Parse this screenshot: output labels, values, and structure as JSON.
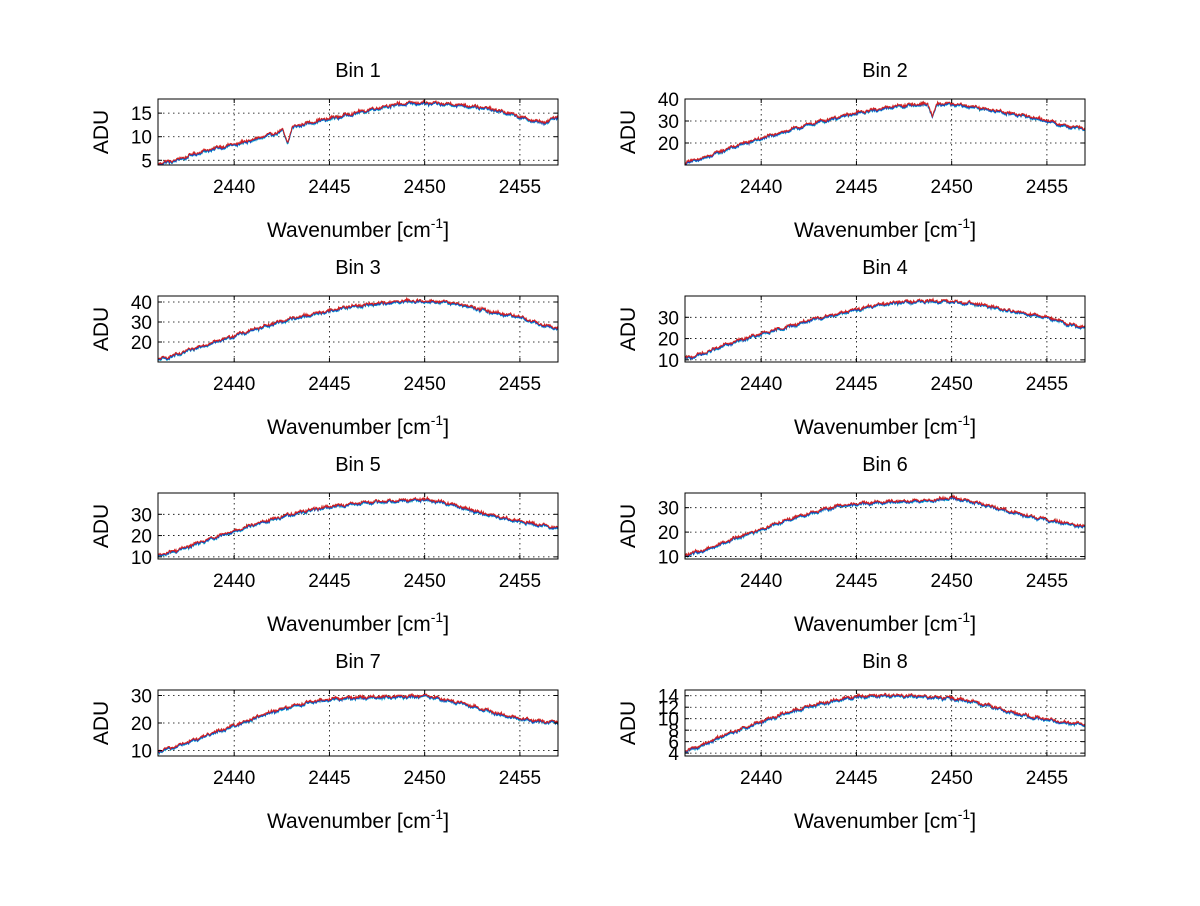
{
  "chart_data": [
    {
      "type": "line",
      "title": "Bin 1",
      "xlabel": "Wavenumber [cm",
      "xlabel_sup": "-1",
      "xlabel_tail": "]",
      "ylabel": "ADU",
      "xlim": [
        2436,
        2457
      ],
      "ylim": [
        4,
        18
      ],
      "xticks": [
        2440,
        2445,
        2450,
        2455
      ],
      "yticks": [
        5,
        10,
        15
      ],
      "grid": true,
      "series_colors": [
        "#00b4d8",
        "#2e8b2e",
        "#1f3fbf",
        "#d62020"
      ],
      "curve": {
        "x": [
          2436,
          2437,
          2438,
          2439,
          2440,
          2441,
          2442,
          2442.8,
          2443.5,
          2444.5,
          2445.5,
          2446.5,
          2447.5,
          2448.5,
          2449.5,
          2450.5,
          2451.5,
          2452.5,
          2453.5,
          2454.5,
          2455.5,
          2456.3,
          2457
        ],
        "y": [
          4.2,
          5.0,
          6.4,
          7.5,
          8.3,
          9.3,
          10.5,
          11.6,
          12.5,
          13.4,
          14.2,
          15.1,
          16.0,
          16.8,
          17.1,
          17.0,
          16.8,
          16.4,
          15.8,
          14.8,
          13.5,
          12.9,
          14.3
        ]
      },
      "dips": [
        {
          "x": 2442.8,
          "depth": 3.0
        }
      ]
    },
    {
      "type": "line",
      "title": "Bin 2",
      "xlabel": "Wavenumber [cm",
      "xlabel_sup": "-1",
      "xlabel_tail": "]",
      "ylabel": "ADU",
      "xlim": [
        2436,
        2457
      ],
      "ylim": [
        10,
        40
      ],
      "xticks": [
        2440,
        2445,
        2450,
        2455
      ],
      "yticks": [
        20,
        30,
        40
      ],
      "grid": true,
      "series_colors": [
        "#00b4d8",
        "#2e8b2e",
        "#1f3fbf",
        "#d62020"
      ],
      "curve": {
        "x": [
          2436,
          2437,
          2438,
          2439,
          2440,
          2441,
          2442,
          2443,
          2444,
          2445,
          2446,
          2447,
          2448,
          2449,
          2450,
          2451,
          2452,
          2453,
          2454,
          2455,
          2456,
          2457
        ],
        "y": [
          11,
          13,
          16.5,
          19.5,
          22,
          24.5,
          27,
          29.5,
          31.5,
          33.5,
          35,
          36.5,
          37.3,
          37.8,
          37.5,
          36.5,
          35,
          33.5,
          32,
          30,
          27.5,
          26.5
        ]
      },
      "dips": [
        {
          "x": 2449.0,
          "depth": 6.0
        }
      ]
    },
    {
      "type": "line",
      "title": "Bin 3",
      "xlabel": "Wavenumber [cm",
      "xlabel_sup": "-1",
      "xlabel_tail": "]",
      "ylabel": "ADU",
      "xlim": [
        2436,
        2457
      ],
      "ylim": [
        10,
        43
      ],
      "xticks": [
        2440,
        2445,
        2450,
        2455
      ],
      "yticks": [
        20,
        30,
        40
      ],
      "grid": true,
      "series_colors": [
        "#00b4d8",
        "#2e8b2e",
        "#1f3fbf",
        "#d62020"
      ],
      "curve": {
        "x": [
          2436,
          2437,
          2438,
          2439,
          2440,
          2441,
          2442,
          2443,
          2444,
          2445,
          2446,
          2447,
          2448,
          2449,
          2450,
          2451,
          2452,
          2453,
          2454,
          2455,
          2456,
          2457
        ],
        "y": [
          11,
          13.5,
          17,
          20,
          23,
          26,
          29,
          31.5,
          33.5,
          35.5,
          37.5,
          38.5,
          39.5,
          40.3,
          40.3,
          39.8,
          38.5,
          36,
          34,
          32.5,
          29,
          26.5
        ]
      },
      "dips": []
    },
    {
      "type": "line",
      "title": "Bin 4",
      "xlabel": "Wavenumber [cm",
      "xlabel_sup": "-1",
      "xlabel_tail": "]",
      "ylabel": "ADU",
      "xlim": [
        2436,
        2457
      ],
      "ylim": [
        9,
        40
      ],
      "xticks": [
        2440,
        2445,
        2450,
        2455
      ],
      "yticks": [
        10,
        20,
        30
      ],
      "grid": true,
      "series_colors": [
        "#00b4d8",
        "#2e8b2e",
        "#1f3fbf",
        "#d62020"
      ],
      "curve": {
        "x": [
          2436,
          2437,
          2438,
          2439,
          2440,
          2441,
          2442,
          2443,
          2444,
          2445,
          2446,
          2447,
          2448,
          2449,
          2450,
          2451,
          2452,
          2453,
          2454,
          2455,
          2456,
          2457
        ],
        "y": [
          10.5,
          13,
          16.5,
          19.5,
          22,
          24.5,
          27,
          29.5,
          31.5,
          33.5,
          35.5,
          36.8,
          37.3,
          37.5,
          37.2,
          36.5,
          35,
          33,
          31.5,
          30,
          27,
          25
        ]
      },
      "dips": []
    },
    {
      "type": "line",
      "title": "Bin 5",
      "xlabel": "Wavenumber [cm",
      "xlabel_sup": "-1",
      "xlabel_tail": "]",
      "ylabel": "ADU",
      "xlim": [
        2436,
        2457
      ],
      "ylim": [
        9,
        40
      ],
      "xticks": [
        2440,
        2445,
        2450,
        2455
      ],
      "yticks": [
        10,
        20,
        30
      ],
      "grid": true,
      "series_colors": [
        "#00b4d8",
        "#2e8b2e",
        "#1f3fbf",
        "#d62020"
      ],
      "curve": {
        "x": [
          2436,
          2437,
          2438,
          2439,
          2440,
          2441,
          2442,
          2443,
          2444,
          2445,
          2446,
          2447,
          2448,
          2449,
          2450,
          2451,
          2452,
          2453,
          2454,
          2455,
          2456,
          2457
        ],
        "y": [
          10.5,
          13,
          16,
          19,
          22,
          25,
          27.5,
          30,
          32,
          33.5,
          34.5,
          35.5,
          36,
          36.5,
          37,
          35.5,
          33,
          30.5,
          28.5,
          26.5,
          25,
          23.5
        ]
      },
      "dips": []
    },
    {
      "type": "line",
      "title": "Bin 6",
      "xlabel": "Wavenumber [cm",
      "xlabel_sup": "-1",
      "xlabel_tail": "]",
      "ylabel": "ADU",
      "xlim": [
        2436,
        2457
      ],
      "ylim": [
        9,
        36
      ],
      "xticks": [
        2440,
        2445,
        2450,
        2455
      ],
      "yticks": [
        10,
        20,
        30
      ],
      "grid": true,
      "series_colors": [
        "#00b4d8",
        "#2e8b2e",
        "#1f3fbf",
        "#d62020"
      ],
      "curve": {
        "x": [
          2436,
          2437,
          2438,
          2439,
          2440,
          2441,
          2442,
          2443,
          2444,
          2445,
          2446,
          2447,
          2448,
          2449,
          2450,
          2451,
          2452,
          2453,
          2454,
          2455,
          2456,
          2457
        ],
        "y": [
          10.5,
          12.5,
          15.5,
          18.5,
          21,
          24,
          26.5,
          28.5,
          30.5,
          31.5,
          32,
          32.5,
          32.5,
          33,
          34,
          32.5,
          30.5,
          28.5,
          26.5,
          25,
          23.5,
          22
        ]
      },
      "dips": []
    },
    {
      "type": "line",
      "title": "Bin 7",
      "xlabel": "Wavenumber [cm",
      "xlabel_sup": "-1",
      "xlabel_tail": "]",
      "ylabel": "ADU",
      "xlim": [
        2436,
        2457
      ],
      "ylim": [
        8,
        32
      ],
      "xticks": [
        2440,
        2445,
        2450,
        2455
      ],
      "yticks": [
        10,
        20,
        30
      ],
      "grid": true,
      "series_colors": [
        "#00b4d8",
        "#2e8b2e",
        "#1f3fbf",
        "#d62020"
      ],
      "curve": {
        "x": [
          2436,
          2437,
          2438,
          2439,
          2440,
          2441,
          2442,
          2443,
          2444,
          2445,
          2446,
          2447,
          2448,
          2449,
          2450,
          2451,
          2452,
          2453,
          2454,
          2455,
          2456,
          2457
        ],
        "y": [
          9.5,
          11.5,
          14,
          16.5,
          19,
          21.5,
          24,
          26,
          27.5,
          28.5,
          29,
          29.3,
          29.3,
          29.5,
          29.8,
          28.5,
          27,
          25,
          23,
          21.5,
          20.5,
          20
        ]
      },
      "dips": []
    },
    {
      "type": "line",
      "title": "Bin 8",
      "xlabel": "Wavenumber [cm",
      "xlabel_sup": "-1",
      "xlabel_tail": "]",
      "ylabel": "ADU",
      "xlim": [
        2436,
        2457
      ],
      "ylim": [
        3.5,
        15
      ],
      "xticks": [
        2440,
        2445,
        2450,
        2455
      ],
      "yticks": [
        4,
        6,
        8,
        10,
        12,
        14
      ],
      "grid": true,
      "series_colors": [
        "#00b4d8",
        "#2e8b2e",
        "#1f3fbf",
        "#d62020"
      ],
      "curve": {
        "x": [
          2436,
          2437,
          2438,
          2439,
          2440,
          2441,
          2442,
          2443,
          2444,
          2445,
          2446,
          2447,
          2448,
          2449,
          2450,
          2451,
          2452,
          2453,
          2454,
          2455,
          2456,
          2457
        ],
        "y": [
          4.2,
          5.5,
          7.0,
          8.2,
          9.4,
          10.6,
          11.6,
          12.5,
          13.2,
          13.8,
          14.0,
          14.0,
          13.9,
          13.7,
          13.5,
          13.0,
          12.2,
          11.2,
          10.4,
          9.8,
          9.3,
          9.0
        ]
      },
      "dips": []
    }
  ]
}
